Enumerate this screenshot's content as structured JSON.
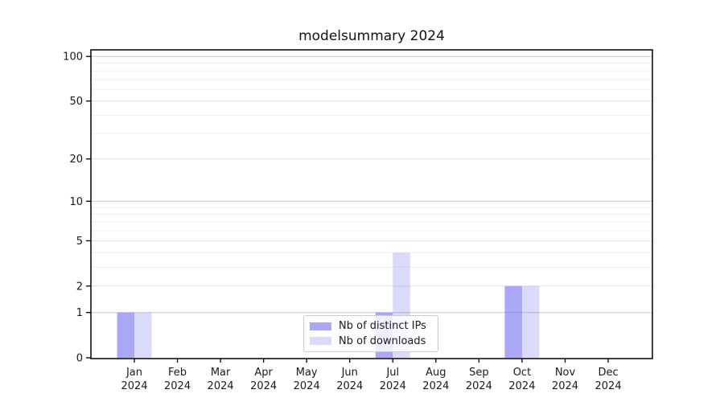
{
  "chart_data": {
    "type": "bar",
    "title": "modelsummary 2024",
    "year_label": "2024",
    "months": [
      "Jan",
      "Feb",
      "Mar",
      "Apr",
      "May",
      "Jun",
      "Jul",
      "Aug",
      "Sep",
      "Oct",
      "Nov",
      "Dec"
    ],
    "categories": [
      "Jan 2024",
      "Feb 2024",
      "Mar 2024",
      "Apr 2024",
      "May 2024",
      "Jun 2024",
      "Jul 2024",
      "Aug 2024",
      "Sep 2024",
      "Oct 2024",
      "Nov 2024",
      "Dec 2024"
    ],
    "series": [
      {
        "name": "Nb of distinct IPs",
        "color": "rgba(97,97,239,0.55)",
        "color_hex_effective": "#a8a8f6",
        "values": [
          1,
          0,
          0,
          0,
          0,
          0,
          1,
          0,
          0,
          2,
          0,
          0
        ]
      },
      {
        "name": "Nb of downloads",
        "color": "rgba(97,97,239,0.23)",
        "color_hex_effective": "#dbdbf8",
        "values": [
          1,
          0,
          0,
          0,
          0,
          0,
          4,
          0,
          0,
          2,
          0,
          0
        ]
      }
    ],
    "xlabel": "",
    "ylabel": "",
    "y_axis": {
      "scale": "log1p",
      "tick_values": [
        0,
        1,
        2,
        5,
        10,
        20,
        50,
        100
      ],
      "tick_labels": [
        "0",
        "1",
        "2",
        "5",
        "10",
        "20",
        "50",
        "100"
      ],
      "decade_gridline_values": [
        1,
        10,
        100
      ],
      "labeled_gridline_values": [
        2,
        5,
        20,
        50
      ],
      "minor_gridline_values": [
        3,
        4,
        6,
        7,
        8,
        9,
        30,
        40,
        60,
        70,
        80,
        90
      ],
      "ylim_top_approx": 110
    },
    "grid": true,
    "legend_position": "lower center",
    "colors": {
      "grid_decade": "#c9c9c9",
      "grid_labeled": "#e3e3e3",
      "grid_minor": "#efefef",
      "spine": "#000000",
      "text": "#1a1a1a"
    }
  }
}
